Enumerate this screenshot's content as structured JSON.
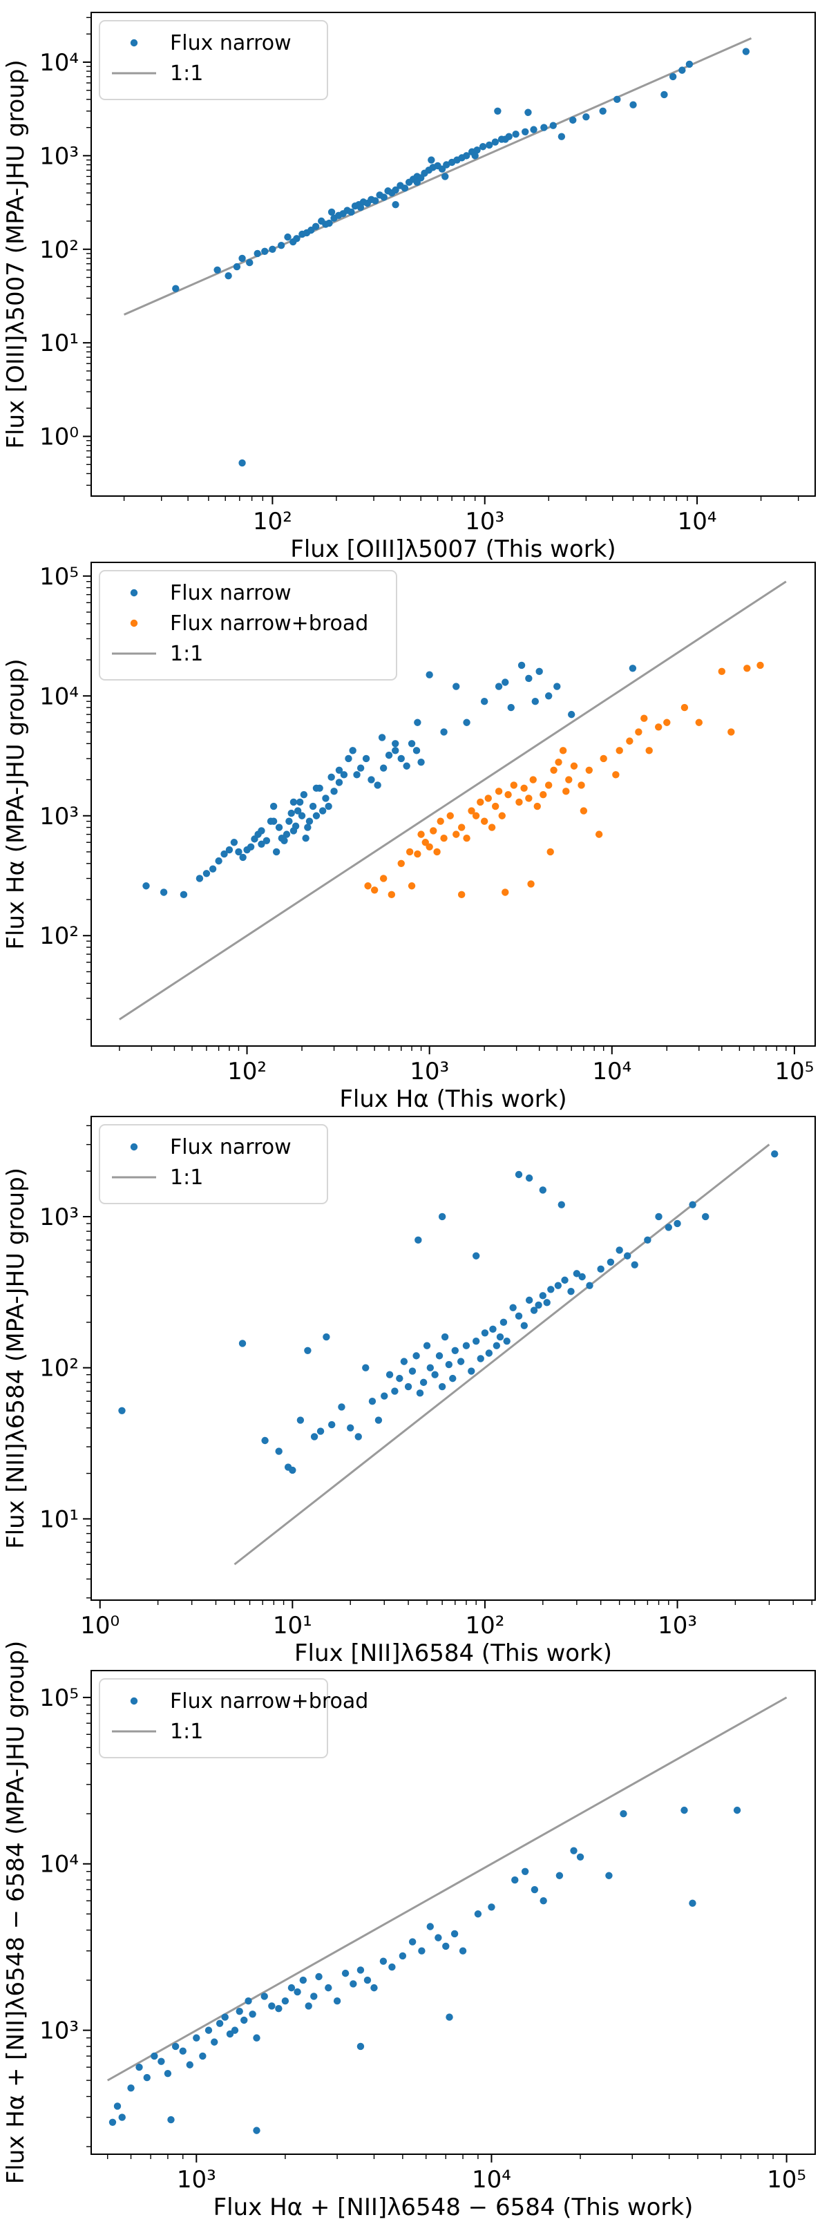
{
  "chart_data": [
    {
      "type": "scatter",
      "xlabel": "Flux [OIII]λ5007 (This work)",
      "ylabel": "Flux [OIII]λ5007 (MPA-JHU group)",
      "xscale": "log",
      "yscale": "log",
      "xlim": [
        14,
        36000
      ],
      "ylim": [
        0.23,
        34000
      ],
      "xticks": [
        {
          "v": 100,
          "label": "10²"
        },
        {
          "v": 1000,
          "label": "10³"
        },
        {
          "v": 10000,
          "label": "10⁴"
        }
      ],
      "yticks": [
        {
          "v": 1,
          "label": "10⁰"
        },
        {
          "v": 10,
          "label": "10¹"
        },
        {
          "v": 100,
          "label": "10²"
        },
        {
          "v": 1000,
          "label": "10³"
        },
        {
          "v": 10000,
          "label": "10⁴"
        }
      ],
      "legend_position": "top-left",
      "series": [
        {
          "name": "Flux narrow",
          "kind": "points",
          "color": "#1f77b4",
          "x": [
            35,
            55,
            62,
            68,
            72,
            78,
            85,
            92,
            100,
            110,
            118,
            125,
            130,
            138,
            145,
            152,
            160,
            170,
            178,
            185,
            195,
            205,
            215,
            225,
            235,
            245,
            255,
            268,
            280,
            292,
            305,
            320,
            335,
            350,
            365,
            380,
            400,
            420,
            440,
            460,
            480,
            500,
            520,
            545,
            570,
            600,
            630,
            660,
            700,
            740,
            780,
            820,
            870,
            920,
            980,
            1050,
            1120,
            1200,
            1300,
            1400,
            1550,
            1700,
            1900,
            2100,
            2300,
            2600,
            3000,
            3600,
            4200,
            5000,
            7000,
            7700,
            8500,
            9200,
            17000,
            72,
            190,
            380,
            480,
            650,
            900,
            1150,
            1600,
            260,
            560,
            1250
          ],
          "y": [
            38,
            60,
            52,
            65,
            80,
            72,
            90,
            95,
            100,
            110,
            135,
            120,
            130,
            145,
            150,
            160,
            175,
            200,
            185,
            190,
            215,
            230,
            240,
            260,
            250,
            290,
            300,
            320,
            310,
            340,
            330,
            380,
            360,
            420,
            400,
            430,
            480,
            450,
            520,
            560,
            600,
            580,
            650,
            700,
            750,
            780,
            720,
            800,
            850,
            900,
            950,
            1000,
            1100,
            1150,
            1250,
            1300,
            1400,
            1500,
            1600,
            1700,
            1800,
            1900,
            2000,
            2100,
            1600,
            2400,
            2600,
            3000,
            4000,
            3500,
            4500,
            7000,
            8200,
            9500,
            13000,
            0.52,
            250,
            300,
            520,
            600,
            1000,
            3000,
            2900,
            280,
            900,
            1500
          ]
        },
        {
          "name": "1:1",
          "kind": "line",
          "color": "#9a9a9a",
          "x": [
            20,
            18000
          ],
          "y": [
            20,
            18000
          ]
        }
      ]
    },
    {
      "type": "scatter",
      "xlabel": "Flux Hα (This work)",
      "ylabel": "Flux Hα (MPA-JHU group)",
      "xscale": "log",
      "yscale": "log",
      "xlim": [
        14,
        130000
      ],
      "ylim": [
        12,
        130000
      ],
      "xticks": [
        {
          "v": 100,
          "label": "10²"
        },
        {
          "v": 1000,
          "label": "10³"
        },
        {
          "v": 10000,
          "label": "10⁴"
        },
        {
          "v": 100000,
          "label": "10⁵"
        }
      ],
      "yticks": [
        {
          "v": 100,
          "label": "10²"
        },
        {
          "v": 1000,
          "label": "10³"
        },
        {
          "v": 10000,
          "label": "10⁴"
        },
        {
          "v": 100000,
          "label": "10⁵"
        }
      ],
      "legend_position": "top-left",
      "series": [
        {
          "name": "Flux narrow",
          "kind": "points",
          "color": "#1f77b4",
          "x": [
            28,
            35,
            45,
            55,
            60,
            65,
            70,
            75,
            80,
            85,
            90,
            95,
            100,
            105,
            110,
            115,
            120,
            128,
            135,
            140,
            145,
            150,
            155,
            160,
            165,
            170,
            175,
            180,
            185,
            190,
            195,
            200,
            205,
            210,
            215,
            220,
            230,
            240,
            250,
            260,
            270,
            280,
            290,
            300,
            320,
            340,
            360,
            380,
            400,
            420,
            450,
            480,
            520,
            560,
            600,
            650,
            700,
            750,
            800,
            850,
            900,
            1000,
            1200,
            1400,
            1600,
            2000,
            2400,
            2800,
            3200,
            3500,
            4000,
            4500,
            5000,
            6000,
            13000,
            3800,
            2600,
            860,
            550,
            650,
            320,
            240,
            180,
            140,
            120
          ],
          "y": [
            260,
            230,
            220,
            300,
            330,
            360,
            420,
            480,
            520,
            600,
            500,
            450,
            520,
            550,
            640,
            700,
            580,
            620,
            900,
            1200,
            500,
            800,
            650,
            620,
            700,
            900,
            1050,
            750,
            820,
            1100,
            1300,
            1000,
            1500,
            650,
            800,
            900,
            1200,
            1000,
            1700,
            1100,
            1400,
            1200,
            2100,
            1600,
            1900,
            2200,
            3000,
            3500,
            2200,
            2500,
            3000,
            2000,
            1800,
            2500,
            3200,
            4000,
            3000,
            2600,
            4000,
            3500,
            2800,
            15000,
            5000,
            12000,
            6000,
            9000,
            12000,
            8000,
            18000,
            14000,
            16000,
            10000,
            12000,
            7000,
            17000,
            9000,
            13000,
            6000,
            4500,
            3500,
            2400,
            1700,
            1300,
            900,
            750
          ]
        },
        {
          "name": "Flux narrow+broad",
          "kind": "points",
          "color": "#ff7f0e",
          "x": [
            460,
            500,
            560,
            620,
            700,
            780,
            800,
            860,
            900,
            950,
            1000,
            1050,
            1100,
            1150,
            1200,
            1300,
            1400,
            1500,
            1600,
            1700,
            1800,
            1900,
            2000,
            2100,
            2200,
            2300,
            2400,
            2500,
            2700,
            2900,
            3100,
            3300,
            3500,
            3700,
            3900,
            4200,
            4500,
            4800,
            5100,
            5400,
            5800,
            6200,
            6800,
            7500,
            8500,
            10500,
            11000,
            12500,
            14000,
            15000,
            16000,
            18000,
            20000,
            25000,
            30000,
            40000,
            45000,
            55000,
            65000,
            1500,
            2600,
            3600,
            4600,
            5600,
            7000,
            9000
          ],
          "y": [
            260,
            240,
            300,
            220,
            400,
            500,
            260,
            480,
            700,
            600,
            550,
            750,
            500,
            900,
            650,
            1000,
            700,
            800,
            650,
            1100,
            1000,
            1300,
            900,
            1400,
            800,
            1200,
            1600,
            1000,
            1500,
            1800,
            1300,
            1700,
            1400,
            2000,
            1200,
            1500,
            1800,
            2400,
            2800,
            3500,
            2000,
            2600,
            1800,
            2400,
            700,
            2200,
            3500,
            4200,
            5000,
            6500,
            3500,
            5500,
            6000,
            8000,
            6000,
            16000,
            5000,
            17000,
            18000,
            220,
            230,
            270,
            500,
            1600,
            1100,
            3000
          ]
        },
        {
          "name": "1:1",
          "kind": "line",
          "color": "#9a9a9a",
          "x": [
            20,
            90000
          ],
          "y": [
            20,
            90000
          ]
        }
      ]
    },
    {
      "type": "scatter",
      "xlabel": "Flux [NII]λ6584 (This work)",
      "ylabel": "Flux [NII]λ6584 (MPA-JHU group)",
      "xscale": "log",
      "yscale": "log",
      "xlim": [
        0.9,
        5200
      ],
      "ylim": [
        2.9,
        4600
      ],
      "xticks": [
        {
          "v": 1,
          "label": "10⁰"
        },
        {
          "v": 10,
          "label": "10¹"
        },
        {
          "v": 100,
          "label": "10²"
        },
        {
          "v": 1000,
          "label": "10³"
        }
      ],
      "yticks": [
        {
          "v": 10,
          "label": "10¹"
        },
        {
          "v": 100,
          "label": "10²"
        },
        {
          "v": 1000,
          "label": "10³"
        }
      ],
      "legend_position": "top-left",
      "series": [
        {
          "name": "Flux narrow",
          "kind": "points",
          "color": "#1f77b4",
          "x": [
            1.3,
            5.5,
            7.2,
            8.5,
            9.5,
            10,
            11,
            12,
            13,
            14,
            15,
            16,
            18,
            20,
            22,
            24,
            26,
            28,
            30,
            32,
            34,
            36,
            38,
            40,
            42,
            44,
            46,
            48,
            50,
            52,
            55,
            58,
            60,
            62,
            65,
            68,
            70,
            75,
            80,
            85,
            90,
            95,
            100,
            105,
            110,
            115,
            120,
            125,
            130,
            140,
            150,
            160,
            170,
            180,
            190,
            200,
            210,
            220,
            240,
            260,
            280,
            300,
            320,
            350,
            400,
            450,
            500,
            550,
            600,
            700,
            800,
            900,
            1000,
            1200,
            1400,
            3200,
            150,
            170,
            200,
            250,
            45,
            60,
            90
          ],
          "y": [
            52,
            145,
            33,
            28,
            22,
            21,
            45,
            130,
            35,
            38,
            160,
            42,
            55,
            40,
            35,
            100,
            60,
            45,
            65,
            90,
            70,
            85,
            110,
            75,
            95,
            120,
            68,
            80,
            140,
            100,
            90,
            120,
            75,
            160,
            105,
            85,
            130,
            110,
            140,
            95,
            150,
            115,
            170,
            125,
            180,
            140,
            160,
            200,
            150,
            250,
            220,
            190,
            280,
            240,
            260,
            300,
            270,
            330,
            350,
            380,
            320,
            420,
            400,
            350,
            450,
            500,
            600,
            550,
            480,
            700,
            1000,
            850,
            900,
            1200,
            1000,
            2600,
            1900,
            1800,
            1500,
            1200,
            700,
            1000,
            550
          ]
        },
        {
          "name": "1:1",
          "kind": "line",
          "color": "#9a9a9a",
          "x": [
            5,
            3000
          ],
          "y": [
            5,
            3000
          ]
        }
      ]
    },
    {
      "type": "scatter",
      "xlabel": "Flux Hα + [NII]λ6548 − 6584 (This work)",
      "ylabel": "Flux Hα + [NII]λ6548 − 6584 (MPA-JHU group)",
      "xscale": "log",
      "yscale": "log",
      "xlim": [
        440,
        125000
      ],
      "ylim": [
        180,
        145000
      ],
      "xticks": [
        {
          "v": 1000,
          "label": "10³"
        },
        {
          "v": 10000,
          "label": "10⁴"
        },
        {
          "v": 100000,
          "label": "10⁵"
        }
      ],
      "yticks": [
        {
          "v": 1000,
          "label": "10³"
        },
        {
          "v": 10000,
          "label": "10⁴"
        },
        {
          "v": 100000,
          "label": "10⁵"
        }
      ],
      "legend_position": "top-left",
      "series": [
        {
          "name": "Flux narrow+broad",
          "kind": "points",
          "color": "#1f77b4",
          "x": [
            520,
            540,
            560,
            600,
            640,
            680,
            720,
            760,
            800,
            850,
            900,
            950,
            1000,
            1050,
            1100,
            1150,
            1200,
            1250,
            1300,
            1350,
            1400,
            1450,
            1500,
            1550,
            1600,
            1700,
            1800,
            1900,
            2000,
            2100,
            2200,
            2300,
            2400,
            2500,
            2600,
            2800,
            3000,
            3200,
            3400,
            3600,
            3800,
            4000,
            4300,
            4600,
            5000,
            5400,
            5800,
            6200,
            6600,
            7000,
            7500,
            8000,
            9000,
            10000,
            12000,
            13000,
            14000,
            15000,
            17000,
            19000,
            20000,
            25000,
            28000,
            45000,
            48000,
            68000,
            820,
            1600,
            3600,
            7200
          ],
          "y": [
            280,
            350,
            300,
            450,
            600,
            520,
            700,
            650,
            550,
            800,
            750,
            620,
            900,
            700,
            1000,
            850,
            1100,
            1200,
            950,
            1000,
            1300,
            1150,
            1500,
            1250,
            900,
            1600,
            1400,
            1350,
            1500,
            1800,
            1700,
            2000,
            1400,
            1600,
            2100,
            1800,
            1500,
            2200,
            1900,
            2300,
            2000,
            1800,
            2600,
            2400,
            2800,
            3400,
            3000,
            4200,
            3600,
            3200,
            3800,
            3000,
            5000,
            5500,
            8000,
            9000,
            7000,
            6000,
            8500,
            12000,
            11000,
            8500,
            20000,
            21000,
            5800,
            21000,
            290,
            250,
            800,
            1200
          ]
        },
        {
          "name": "1:1",
          "kind": "line",
          "color": "#9a9a9a",
          "x": [
            500,
            100000
          ],
          "y": [
            500,
            100000
          ]
        }
      ]
    }
  ]
}
